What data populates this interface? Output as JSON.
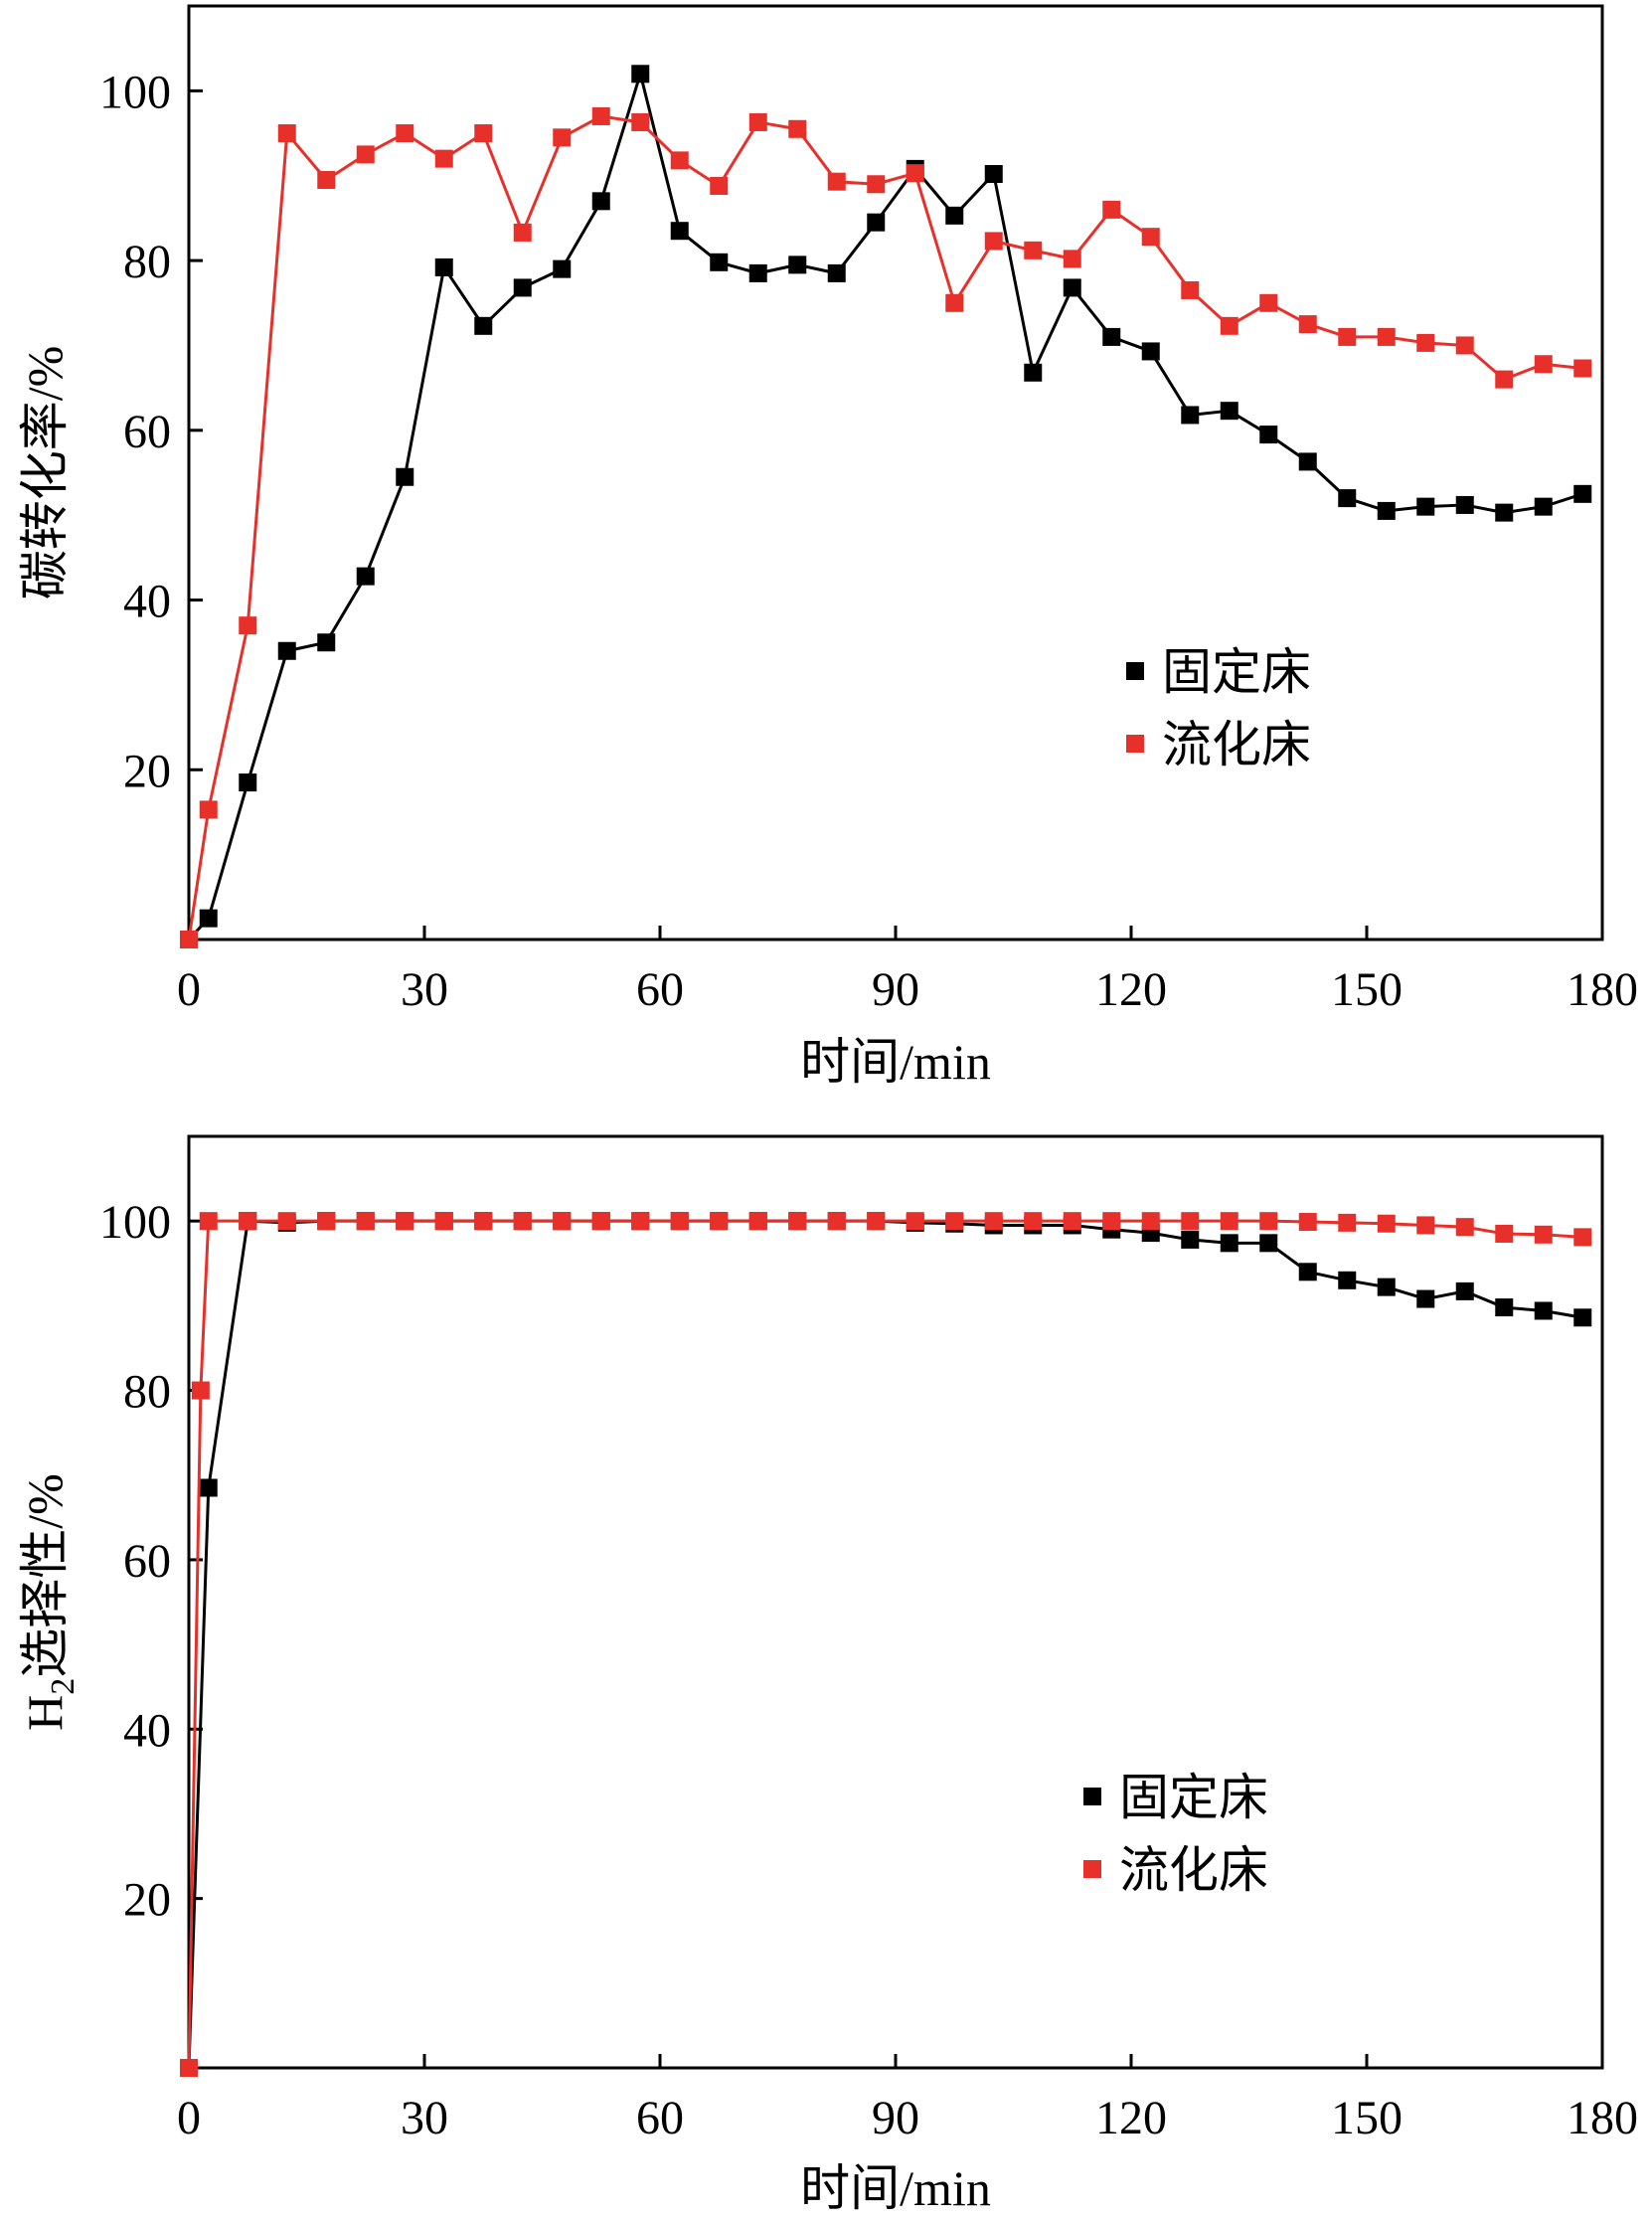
{
  "chart_data": [
    {
      "type": "line",
      "title": "",
      "xlabel": "时间/min",
      "ylabel": "碳转化率/%",
      "xlim": [
        0,
        180
      ],
      "ylim": [
        0,
        110
      ],
      "xticks": [
        0,
        30,
        60,
        90,
        120,
        150,
        180
      ],
      "yticks": [
        20,
        40,
        60,
        80,
        100
      ],
      "grid": false,
      "legend_position": "right-middle",
      "series": [
        {
          "name": "固定床",
          "color": "#000000",
          "x": [
            0,
            2.5,
            7.5,
            12.5,
            17.5,
            22.5,
            27.5,
            32.5,
            37.5,
            42.5,
            47.5,
            52.5,
            57.5,
            62.5,
            67.5,
            72.5,
            77.5,
            82.5,
            87.5,
            92.5,
            97.5,
            102.5,
            107.5,
            112.5,
            117.5,
            122.5,
            127.5,
            132.5,
            137.5,
            142.5,
            147.5,
            152.5,
            157.5,
            162.5,
            167.5,
            172.5,
            177.5
          ],
          "y": [
            0,
            2.5,
            18.5,
            34,
            35,
            42.8,
            54.5,
            79.2,
            72.3,
            76.8,
            79,
            87,
            102,
            83.5,
            79.8,
            78.5,
            79.5,
            78.5,
            84.5,
            90.8,
            85.3,
            90.2,
            66.8,
            76.8,
            71,
            69.3,
            61.8,
            62.3,
            59.5,
            56.3,
            52,
            50.5,
            51,
            51.2,
            50.3,
            51,
            52.5
          ]
        },
        {
          "name": "流化床",
          "color": "#e8302a",
          "x": [
            0,
            2.5,
            7.5,
            12.5,
            17.5,
            22.5,
            27.5,
            32.5,
            37.5,
            42.5,
            47.5,
            52.5,
            57.5,
            62.5,
            67.5,
            72.5,
            77.5,
            82.5,
            87.5,
            92.5,
            97.5,
            102.5,
            107.5,
            112.5,
            117.5,
            122.5,
            127.5,
            132.5,
            137.5,
            142.5,
            147.5,
            152.5,
            157.5,
            162.5,
            167.5,
            172.5,
            177.5
          ],
          "y": [
            0,
            15.3,
            37,
            95,
            89.5,
            92.5,
            95,
            92,
            95,
            83.3,
            94.5,
            97,
            96.3,
            91.8,
            88.8,
            96.3,
            95.5,
            89.3,
            89,
            90.3,
            75,
            82.3,
            81.2,
            80.2,
            86,
            82.8,
            76.5,
            72.3,
            75,
            72.5,
            71,
            71,
            70.3,
            70,
            66,
            67.8,
            67.3
          ]
        }
      ]
    },
    {
      "type": "line",
      "title": "",
      "xlabel": "时间/min",
      "ylabel_main": "H",
      "ylabel_sub": "2",
      "ylabel_rest": "选择性/%",
      "xlim": [
        0,
        180
      ],
      "ylim": [
        0,
        110
      ],
      "xticks": [
        0,
        30,
        60,
        90,
        120,
        150,
        180
      ],
      "yticks": [
        20,
        40,
        60,
        80,
        100
      ],
      "grid": false,
      "legend_position": "right-lower",
      "series": [
        {
          "name": "固定床",
          "color": "#000000",
          "x": [
            0,
            2.5,
            7.5,
            12.5,
            17.5,
            22.5,
            27.5,
            32.5,
            37.5,
            42.5,
            47.5,
            52.5,
            57.5,
            62.5,
            67.5,
            72.5,
            77.5,
            82.5,
            87.5,
            92.5,
            97.5,
            102.5,
            107.5,
            112.5,
            117.5,
            122.5,
            127.5,
            132.5,
            137.5,
            142.5,
            147.5,
            152.5,
            157.5,
            162.5,
            167.5,
            172.5,
            177.5
          ],
          "y": [
            0,
            68.5,
            100,
            99.8,
            100,
            100,
            100,
            100,
            100,
            100,
            100,
            100,
            100,
            100,
            100,
            100,
            100,
            100,
            100,
            99.8,
            99.7,
            99.5,
            99.5,
            99.5,
            99,
            98.6,
            97.8,
            97.4,
            97.4,
            94,
            93,
            92.2,
            90.8,
            91.7,
            89.8,
            89.4,
            88.6
          ]
        },
        {
          "name": "流化床",
          "color": "#e8302a",
          "x": [
            0,
            1.5,
            2.5,
            7.5,
            12.5,
            17.5,
            22.5,
            27.5,
            32.5,
            37.5,
            42.5,
            47.5,
            52.5,
            57.5,
            62.5,
            67.5,
            72.5,
            77.5,
            82.5,
            87.5,
            92.5,
            97.5,
            102.5,
            107.5,
            112.5,
            117.5,
            122.5,
            127.5,
            132.5,
            137.5,
            142.5,
            147.5,
            152.5,
            157.5,
            162.5,
            167.5,
            172.5,
            177.5
          ],
          "y": [
            0,
            80,
            100,
            100,
            100,
            100,
            100,
            100,
            100,
            100,
            100,
            100,
            100,
            100,
            100,
            100,
            100,
            100,
            100,
            100,
            100,
            100,
            100,
            100,
            100,
            100,
            100,
            100,
            100,
            100,
            99.9,
            99.8,
            99.7,
            99.5,
            99.3,
            98.5,
            98.4,
            98.1
          ]
        }
      ]
    }
  ]
}
